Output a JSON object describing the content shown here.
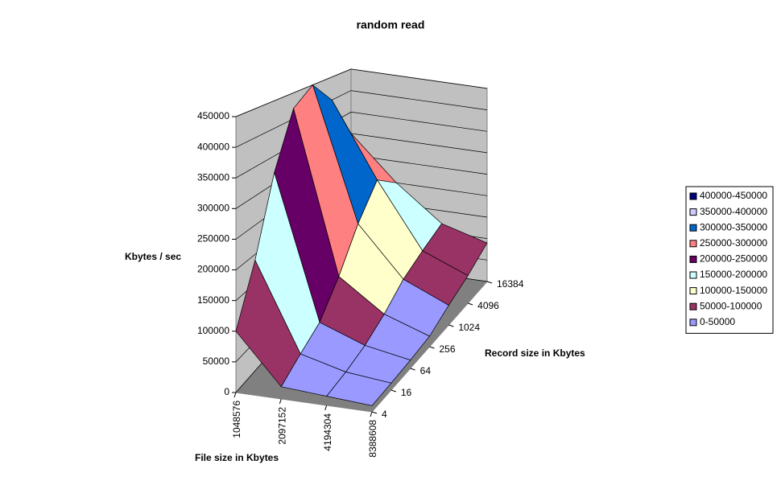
{
  "chart_data": {
    "type": "surface3d",
    "title": "random read",
    "x_label": "File size in Kbytes",
    "y_label": "Record size in Kbytes",
    "z_label": "Kbytes / sec",
    "x": [
      1048576,
      2097152,
      4194304,
      8388608
    ],
    "y": [
      4,
      16,
      64,
      256,
      1024,
      4096,
      16384
    ],
    "values": [
      [
        100000,
        20000,
        15000,
        10000
      ],
      [
        190000,
        40000,
        20000,
        12000
      ],
      [
        320000,
        60000,
        30000,
        15000
      ],
      [
        420000,
        110000,
        50000,
        20000
      ],
      [
        450000,
        180000,
        80000,
        40000
      ],
      [
        400000,
        240000,
        100000,
        60000
      ],
      [
        300000,
        200000,
        120000,
        90000
      ]
    ],
    "zlim": [
      0,
      450000
    ],
    "zticks": [
      0,
      50000,
      100000,
      150000,
      200000,
      250000,
      300000,
      350000,
      400000,
      450000
    ],
    "legend": "right",
    "bands": [
      {
        "name": "400000-450000",
        "color": "#000080"
      },
      {
        "name": "350000-400000",
        "color": "#ccccff"
      },
      {
        "name": "300000-350000",
        "color": "#0066cc"
      },
      {
        "name": "250000-300000",
        "color": "#ff8080"
      },
      {
        "name": "200000-250000",
        "color": "#660066"
      },
      {
        "name": "150000-200000",
        "color": "#ccffff"
      },
      {
        "name": "100000-150000",
        "color": "#ffffcc"
      },
      {
        "name": "50000-100000",
        "color": "#993366"
      },
      {
        "name": "0-50000",
        "color": "#9999ff"
      }
    ]
  }
}
